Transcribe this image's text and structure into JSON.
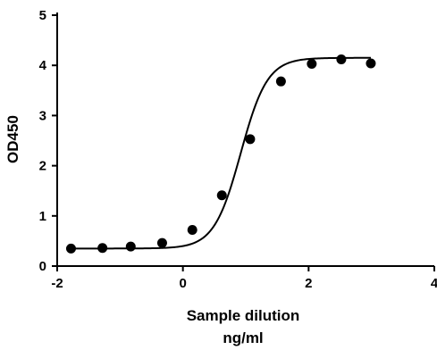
{
  "chart_data": {
    "type": "scatter",
    "title": "",
    "xlabel_line1": "Sample dilution",
    "xlabel_line2": "ng/ml",
    "ylabel": "OD450",
    "xlim": [
      -2,
      4
    ],
    "ylim": [
      0,
      5
    ],
    "x_ticks": [
      "-2",
      "0",
      "2",
      "4"
    ],
    "y_ticks": [
      "0",
      "1",
      "2",
      "3",
      "4",
      "5"
    ],
    "grid": false,
    "legend": "none",
    "fit_curve": "4-parameter logistic",
    "series": [
      {
        "x": [
          -1.78,
          -1.28,
          -0.83,
          -0.33,
          0.15,
          0.62,
          1.07,
          1.56,
          2.05,
          2.52,
          2.99
        ],
        "y": [
          0.35,
          0.36,
          0.39,
          0.46,
          0.72,
          1.41,
          2.53,
          3.68,
          4.03,
          4.12,
          4.04
        ]
      }
    ],
    "colors": {
      "marker": "#000000",
      "line": "#000000"
    }
  }
}
